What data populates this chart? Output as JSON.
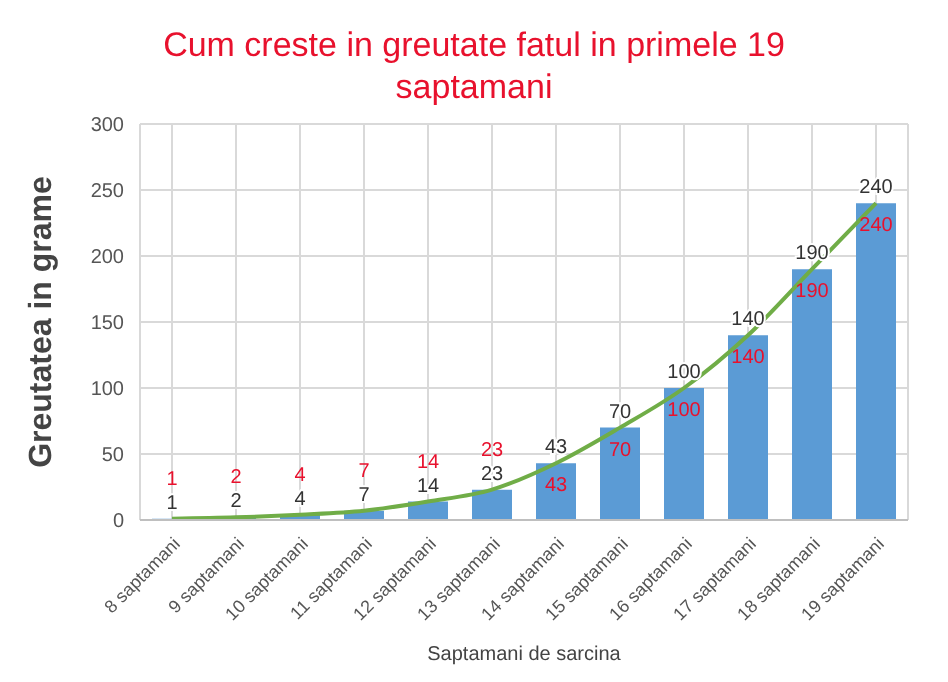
{
  "chart_data": {
    "type": "bar",
    "title": "Cum creste in greutate fatul in primele 19 saptamani",
    "xlabel": "Saptamani de sarcina",
    "ylabel": "Greutatea in grame",
    "categories": [
      "8 saptamani",
      "9 saptamani",
      "10 saptamani",
      "11 saptamani",
      "12 saptamani",
      "13 saptamani",
      "14 saptamani",
      "15 saptamani",
      "16 saptamani",
      "17 saptamani",
      "18 saptamani",
      "19 saptamani"
    ],
    "series": [
      {
        "color": "#5b9bd5",
        "values": [
          1,
          2,
          4,
          7,
          14,
          23,
          43,
          70,
          100,
          140,
          190,
          240
        ]
      },
      {
        "type": "line",
        "color": "#70ad47",
        "values": [
          1,
          2,
          4,
          7,
          14,
          23,
          43,
          70,
          100,
          140,
          190,
          240
        ]
      }
    ],
    "ylim": [
      0,
      300
    ],
    "yticks": [
      0,
      50,
      100,
      150,
      200,
      250,
      300
    ],
    "grid": true,
    "legend": false,
    "data_labels": true,
    "marker": "none",
    "line_style": "solid"
  }
}
